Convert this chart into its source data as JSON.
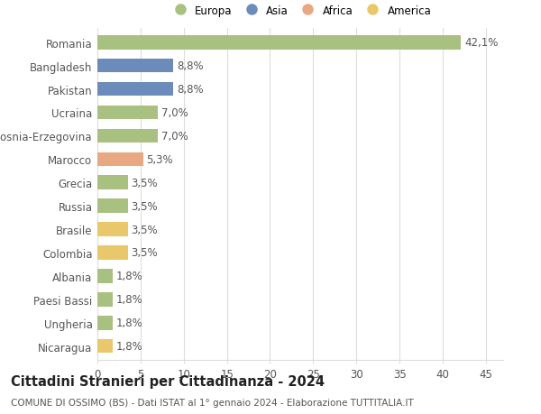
{
  "countries": [
    "Romania",
    "Bangladesh",
    "Pakistan",
    "Ucraina",
    "Bosnia-Erzegovina",
    "Marocco",
    "Grecia",
    "Russia",
    "Brasile",
    "Colombia",
    "Albania",
    "Paesi Bassi",
    "Ungheria",
    "Nicaragua"
  ],
  "values": [
    42.1,
    8.8,
    8.8,
    7.0,
    7.0,
    5.3,
    3.5,
    3.5,
    3.5,
    3.5,
    1.8,
    1.8,
    1.8,
    1.8
  ],
  "labels": [
    "42,1%",
    "8,8%",
    "8,8%",
    "7,0%",
    "7,0%",
    "5,3%",
    "3,5%",
    "3,5%",
    "3,5%",
    "3,5%",
    "1,8%",
    "1,8%",
    "1,8%",
    "1,8%"
  ],
  "colors": [
    "#a8c080",
    "#6b8cba",
    "#6b8cba",
    "#a8c080",
    "#a8c080",
    "#e8a882",
    "#a8c080",
    "#a8c080",
    "#e8c86a",
    "#e8c86a",
    "#a8c080",
    "#a8c080",
    "#a8c080",
    "#e8c86a"
  ],
  "legend_labels": [
    "Europa",
    "Asia",
    "Africa",
    "America"
  ],
  "legend_colors": [
    "#a8c080",
    "#6b8cba",
    "#e8a882",
    "#e8c86a"
  ],
  "title": "Cittadini Stranieri per Cittadinanza - 2024",
  "subtitle": "COMUNE DI OSSIMO (BS) - Dati ISTAT al 1° gennaio 2024 - Elaborazione TUTTITALIA.IT",
  "xlim": [
    0,
    47
  ],
  "xticks": [
    0,
    5,
    10,
    15,
    20,
    25,
    30,
    35,
    40,
    45
  ],
  "bg_color": "#ffffff",
  "grid_color": "#dddddd",
  "bar_height": 0.6,
  "label_fontsize": 8.5,
  "tick_fontsize": 8.5,
  "title_fontsize": 10.5,
  "subtitle_fontsize": 7.5
}
